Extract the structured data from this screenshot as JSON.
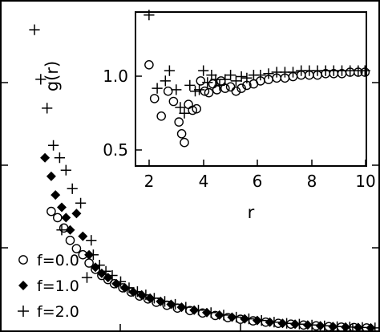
{
  "chart_data": [
    {
      "type": "scatter",
      "role": "main",
      "x_range": [
        1.5,
        10.5
      ],
      "y_range": [
        0.0,
        8.0
      ],
      "legend_position": "bottom-left",
      "series": [
        {
          "name": "f=0.0",
          "marker": "circle",
          "points": [
            [
              2.7,
              2.9
            ],
            [
              2.85,
              2.75
            ],
            [
              3.0,
              2.5
            ],
            [
              3.15,
              2.2
            ],
            [
              3.3,
              2.0
            ],
            [
              3.45,
              1.85
            ],
            [
              3.6,
              1.65
            ],
            [
              3.75,
              1.5
            ],
            [
              3.9,
              1.35
            ],
            [
              4.05,
              1.25
            ],
            [
              4.2,
              1.15
            ],
            [
              4.4,
              1.05
            ],
            [
              4.6,
              0.95
            ],
            [
              4.8,
              0.85
            ],
            [
              5.0,
              0.78
            ],
            [
              5.2,
              0.7
            ],
            [
              5.45,
              0.63
            ],
            [
              5.7,
              0.56
            ],
            [
              6.0,
              0.5
            ],
            [
              6.3,
              0.44
            ],
            [
              6.6,
              0.38
            ],
            [
              6.9,
              0.33
            ],
            [
              7.2,
              0.29
            ],
            [
              7.5,
              0.25
            ],
            [
              7.8,
              0.22
            ],
            [
              8.1,
              0.19
            ],
            [
              8.4,
              0.17
            ],
            [
              8.7,
              0.15
            ],
            [
              9.0,
              0.13
            ],
            [
              9.3,
              0.11
            ],
            [
              9.6,
              0.1
            ],
            [
              9.9,
              0.09
            ],
            [
              10.2,
              0.08
            ]
          ]
        },
        {
          "name": "f=1.0",
          "marker": "diamond",
          "points": [
            [
              2.55,
              4.2
            ],
            [
              2.7,
              3.75
            ],
            [
              2.8,
              3.3
            ],
            [
              2.95,
              3.0
            ],
            [
              3.05,
              2.75
            ],
            [
              3.15,
              2.45
            ],
            [
              3.3,
              2.85
            ],
            [
              3.45,
              2.3
            ],
            [
              3.6,
              1.85
            ],
            [
              3.75,
              1.55
            ],
            [
              3.9,
              1.4
            ],
            [
              4.05,
              1.3
            ],
            [
              4.25,
              1.15
            ],
            [
              4.45,
              1.05
            ],
            [
              4.65,
              0.95
            ],
            [
              4.85,
              0.88
            ],
            [
              5.05,
              0.8
            ],
            [
              5.3,
              0.72
            ],
            [
              5.55,
              0.65
            ],
            [
              5.8,
              0.58
            ],
            [
              6.1,
              0.51
            ],
            [
              6.4,
              0.45
            ],
            [
              6.7,
              0.39
            ],
            [
              7.0,
              0.34
            ],
            [
              7.3,
              0.3
            ],
            [
              7.6,
              0.26
            ],
            [
              7.9,
              0.22
            ],
            [
              8.2,
              0.19
            ],
            [
              8.5,
              0.17
            ],
            [
              8.8,
              0.15
            ],
            [
              9.1,
              0.13
            ],
            [
              9.4,
              0.11
            ],
            [
              9.7,
              0.1
            ],
            [
              10.0,
              0.09
            ],
            [
              10.3,
              0.08
            ]
          ]
        },
        {
          "name": "f=2.0",
          "marker": "plus",
          "points": [
            [
              2.3,
              7.3
            ],
            [
              2.45,
              6.1
            ],
            [
              2.6,
              5.4
            ],
            [
              2.75,
              4.5
            ],
            [
              2.9,
              4.2
            ],
            [
              3.05,
              3.9
            ],
            [
              3.2,
              3.45
            ],
            [
              3.4,
              3.1
            ],
            [
              2.95,
              2.45
            ],
            [
              3.55,
              1.3
            ],
            [
              3.65,
              2.2
            ],
            [
              3.7,
              1.85
            ],
            [
              3.85,
              1.6
            ],
            [
              4.0,
              1.45
            ],
            [
              4.15,
              1.35
            ],
            [
              4.35,
              1.2
            ],
            [
              4.55,
              1.05
            ],
            [
              4.75,
              0.96
            ],
            [
              4.95,
              0.88
            ],
            [
              5.15,
              0.8
            ],
            [
              5.4,
              0.72
            ],
            [
              5.65,
              0.65
            ],
            [
              5.9,
              0.58
            ],
            [
              6.2,
              0.51
            ],
            [
              6.5,
              0.45
            ],
            [
              6.8,
              0.39
            ],
            [
              7.1,
              0.34
            ],
            [
              7.4,
              0.3
            ],
            [
              7.7,
              0.26
            ],
            [
              8.0,
              0.22
            ],
            [
              8.3,
              0.19
            ],
            [
              8.6,
              0.17
            ],
            [
              8.9,
              0.15
            ],
            [
              9.2,
              0.13
            ],
            [
              9.5,
              0.11
            ],
            [
              9.8,
              0.1
            ],
            [
              10.1,
              0.09
            ],
            [
              10.4,
              0.08
            ]
          ]
        }
      ]
    },
    {
      "type": "scatter",
      "role": "inset",
      "xlabel": "r",
      "ylabel": "g(r)",
      "xlim": [
        1.5,
        10.0
      ],
      "ylim": [
        0.35,
        1.4
      ],
      "xticks": [
        "2",
        "4",
        "6",
        "8",
        "10"
      ],
      "yticks": [
        "0.5",
        "1.0"
      ],
      "series": [
        {
          "marker": "circle",
          "points": [
            [
              2.0,
              1.04
            ],
            [
              2.2,
              0.81
            ],
            [
              2.45,
              0.69
            ],
            [
              2.7,
              0.86
            ],
            [
              2.9,
              0.79
            ],
            [
              3.1,
              0.65
            ],
            [
              3.2,
              0.57
            ],
            [
              3.3,
              0.51
            ],
            [
              3.45,
              0.77
            ],
            [
              3.6,
              0.73
            ],
            [
              3.75,
              0.74
            ],
            [
              3.9,
              0.93
            ],
            [
              4.05,
              0.86
            ],
            [
              4.2,
              0.85
            ],
            [
              4.35,
              0.91
            ],
            [
              4.5,
              0.87
            ],
            [
              4.65,
              0.93
            ],
            [
              4.8,
              0.88
            ],
            [
              5.0,
              0.89
            ],
            [
              5.2,
              0.86
            ],
            [
              5.4,
              0.88
            ],
            [
              5.6,
              0.9
            ],
            [
              5.85,
              0.91
            ],
            [
              6.1,
              0.93
            ],
            [
              6.4,
              0.94
            ],
            [
              6.7,
              0.95
            ],
            [
              7.0,
              0.95
            ],
            [
              7.3,
              0.96
            ],
            [
              7.6,
              0.97
            ],
            [
              7.9,
              0.97
            ],
            [
              8.2,
              0.97
            ],
            [
              8.5,
              0.98
            ],
            [
              8.8,
              0.98
            ],
            [
              9.1,
              0.98
            ],
            [
              9.4,
              0.99
            ],
            [
              9.7,
              0.99
            ],
            [
              9.95,
              0.99
            ]
          ]
        },
        {
          "marker": "plus",
          "points": [
            [
              2.0,
              1.38
            ],
            [
              2.3,
              0.88
            ],
            [
              2.6,
              0.93
            ],
            [
              2.75,
              1.0
            ],
            [
              3.0,
              0.87
            ],
            [
              3.15,
              0.75
            ],
            [
              3.3,
              0.71
            ],
            [
              3.5,
              0.9
            ],
            [
              3.7,
              0.86
            ],
            [
              3.85,
              0.87
            ],
            [
              4.0,
              1.0
            ],
            [
              4.15,
              0.92
            ],
            [
              4.3,
              0.97
            ],
            [
              4.45,
              0.94
            ],
            [
              4.6,
              0.9
            ],
            [
              4.8,
              0.94
            ],
            [
              5.0,
              0.97
            ],
            [
              5.2,
              0.93
            ],
            [
              5.4,
              0.96
            ],
            [
              5.6,
              0.95
            ],
            [
              5.85,
              0.97
            ],
            [
              6.1,
              0.97
            ],
            [
              6.4,
              0.98
            ],
            [
              6.7,
              0.99
            ],
            [
              7.0,
              0.99
            ],
            [
              7.3,
              0.99
            ],
            [
              7.6,
              1.0
            ],
            [
              7.9,
              1.0
            ],
            [
              8.2,
              1.0
            ],
            [
              8.5,
              1.0
            ],
            [
              8.8,
              1.0
            ],
            [
              9.1,
              1.0
            ],
            [
              9.4,
              1.0
            ],
            [
              9.7,
              1.0
            ],
            [
              9.95,
              1.0
            ]
          ]
        }
      ]
    }
  ]
}
